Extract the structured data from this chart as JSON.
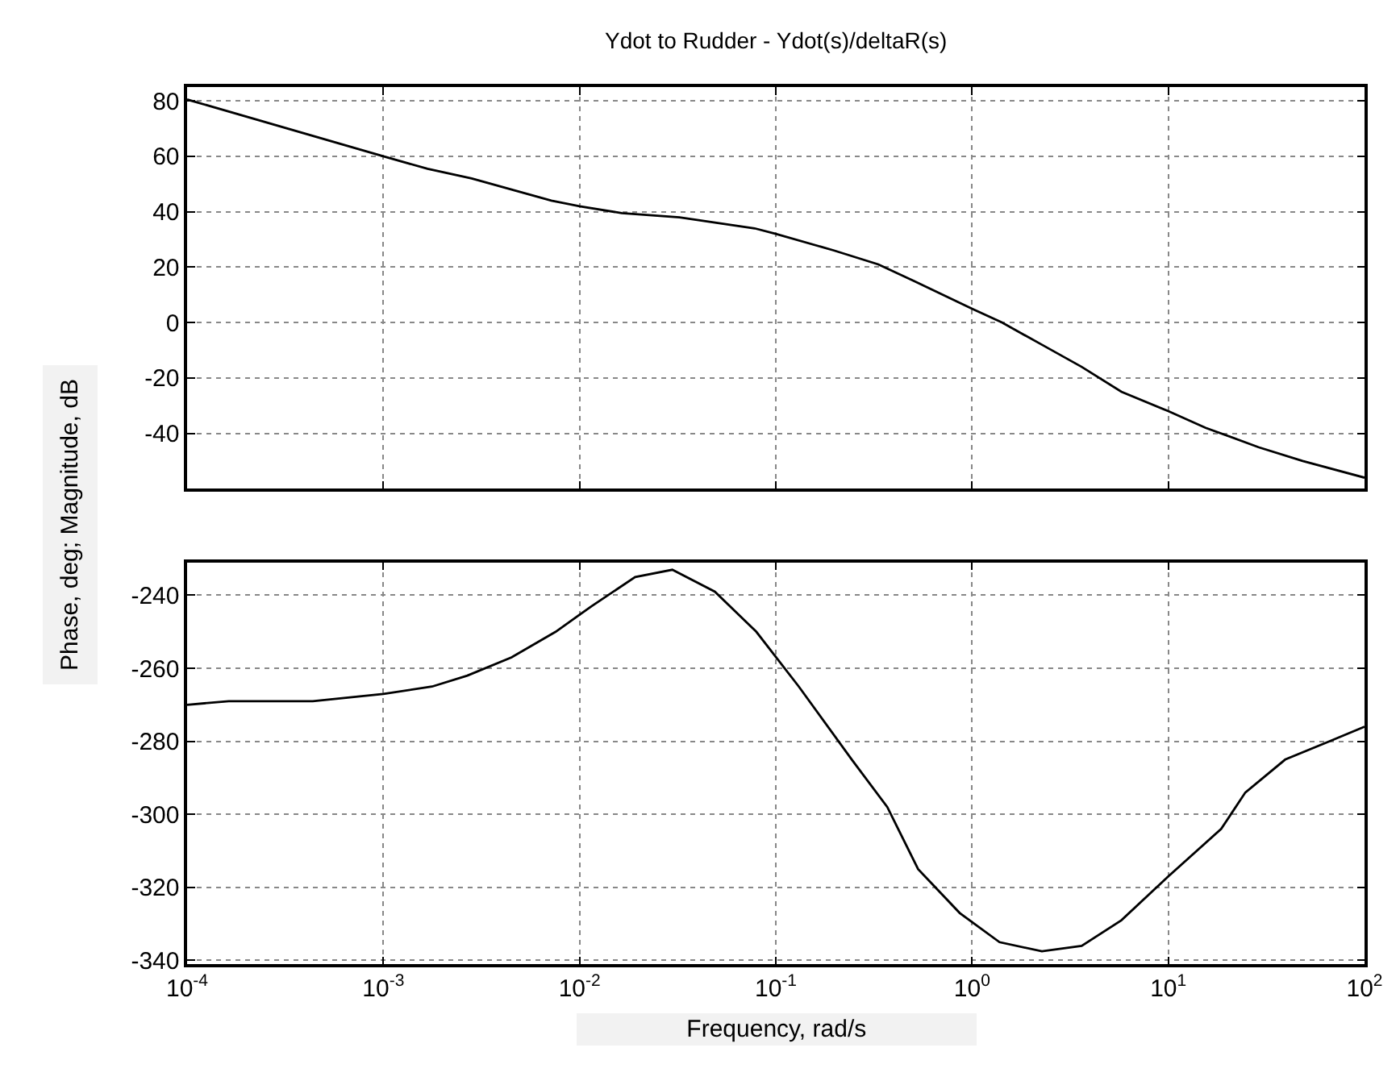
{
  "chart_data": [
    {
      "type": "line",
      "title": "Ydot to Rudder - Ydot(s)/deltaR(s)",
      "ylabel": "Phase, deg; Magnitude, dB",
      "log": "x",
      "grid": true,
      "tick_labels": "y",
      "xlim": [
        0.0001,
        100
      ],
      "xticks": [
        {
          "value": 0.0001,
          "label": "10$^{-4}$"
        },
        {
          "value": 0.001,
          "label": "10$^{-3}$"
        },
        {
          "value": 0.01,
          "label": "10$^{-2}$"
        },
        {
          "value": 0.1,
          "label": "10$^{-1}$"
        },
        {
          "value": 1,
          "label": "10$^{0}$"
        },
        {
          "value": 10,
          "label": "10$^{1}$"
        },
        {
          "value": 100,
          "label": "10$^{2}$"
        }
      ],
      "ylim": [
        -60,
        85
      ],
      "yticks": [
        -40,
        -20,
        0,
        20,
        40,
        60,
        80
      ],
      "series": [
        {
          "color": "#000000",
          "x": [
            0.0001,
            0.001,
            0.00168,
            0.00282,
            0.00718,
            0.01,
            0.0164,
            0.0323,
            0.078,
            0.1,
            0.198,
            0.333,
            0.505,
            1,
            1.42,
            2.27,
            3.62,
            5.77,
            10,
            15.5,
            28.8,
            48.4,
            100
          ],
          "values": [
            80.5,
            60,
            55.5,
            52,
            44,
            42,
            39.5,
            38,
            34,
            32,
            26,
            21,
            15,
            5,
            0,
            -8,
            -16,
            -25,
            -32,
            -38,
            -45,
            -50,
            -56
          ]
        }
      ]
    },
    {
      "type": "line",
      "xlabel": "Frequency, rad/s",
      "log": "x",
      "grid": true,
      "xlim": [
        0.0001,
        100
      ],
      "xticks": [
        {
          "value": 0.0001,
          "label": "10$^{-4}$"
        },
        {
          "value": 0.001,
          "label": "10$^{-3}$"
        },
        {
          "value": 0.01,
          "label": "10$^{-2}$"
        },
        {
          "value": 0.1,
          "label": "10$^{-1}$"
        },
        {
          "value": 1,
          "label": "10$^{0}$"
        },
        {
          "value": 10,
          "label": "10$^{1}$"
        },
        {
          "value": 100,
          "label": "10$^{2}$"
        }
      ],
      "ylim": [
        -341,
        -231
      ],
      "yticks": [
        -340,
        -320,
        -300,
        -280,
        -260,
        -240
      ],
      "series": [
        {
          "color": "#000000",
          "x": [
            0.0001,
            0.000163,
            0.000437,
            0.000661,
            0.001,
            0.00177,
            0.00268,
            0.0045,
            0.00755,
            0.0115,
            0.0192,
            0.0297,
            0.0489,
            0.0796,
            0.131,
            0.244,
            0.37,
            0.531,
            0.865,
            1.38,
            2.27,
            3.62,
            5.77,
            10,
            18.6,
            24.7,
            39.4,
            66.1,
            100
          ],
          "values": [
            -270,
            -269,
            -269,
            -268,
            -267,
            -265,
            -262,
            -257,
            -250,
            -243,
            -235,
            -233,
            -239,
            -250,
            -265,
            -285,
            -298,
            -315,
            -327,
            -335,
            -337.5,
            -336,
            -329,
            -317,
            -304,
            -294,
            -285,
            -280,
            -276
          ]
        }
      ]
    }
  ]
}
